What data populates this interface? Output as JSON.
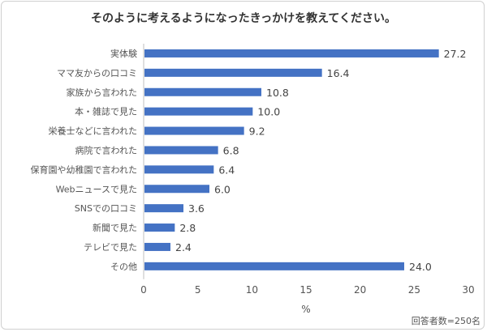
{
  "chart_data": {
    "type": "bar",
    "orientation": "horizontal",
    "title": "そのように考えるようになったきっかけを教えてください。",
    "categories": [
      "実体験",
      "ママ友からの口コミ",
      "家族から言われた",
      "本・雑誌で見た",
      "栄養士などに言われた",
      "病院で言われた",
      "保育園や幼稚園で言われた",
      "Webニュースで見た",
      "SNSでの口コミ",
      "新聞で見た",
      "テレビで見た",
      "その他"
    ],
    "values": [
      27.2,
      16.4,
      10.8,
      10.0,
      9.2,
      6.8,
      6.4,
      6.0,
      3.6,
      2.8,
      2.4,
      24.0
    ],
    "value_labels": [
      "27.2",
      "16.4",
      "10.8",
      "10.0",
      "9.2",
      "6.8",
      "6.4",
      "6.0",
      "3.6",
      "2.8",
      "2.4",
      "24.0"
    ],
    "xlabel": "%",
    "xlim": [
      0,
      30
    ],
    "xticks": [
      "0",
      "5",
      "10",
      "15",
      "20",
      "25",
      "30"
    ],
    "grid": false,
    "bar_color": "#4472c4",
    "note": "回答者数=250名"
  }
}
